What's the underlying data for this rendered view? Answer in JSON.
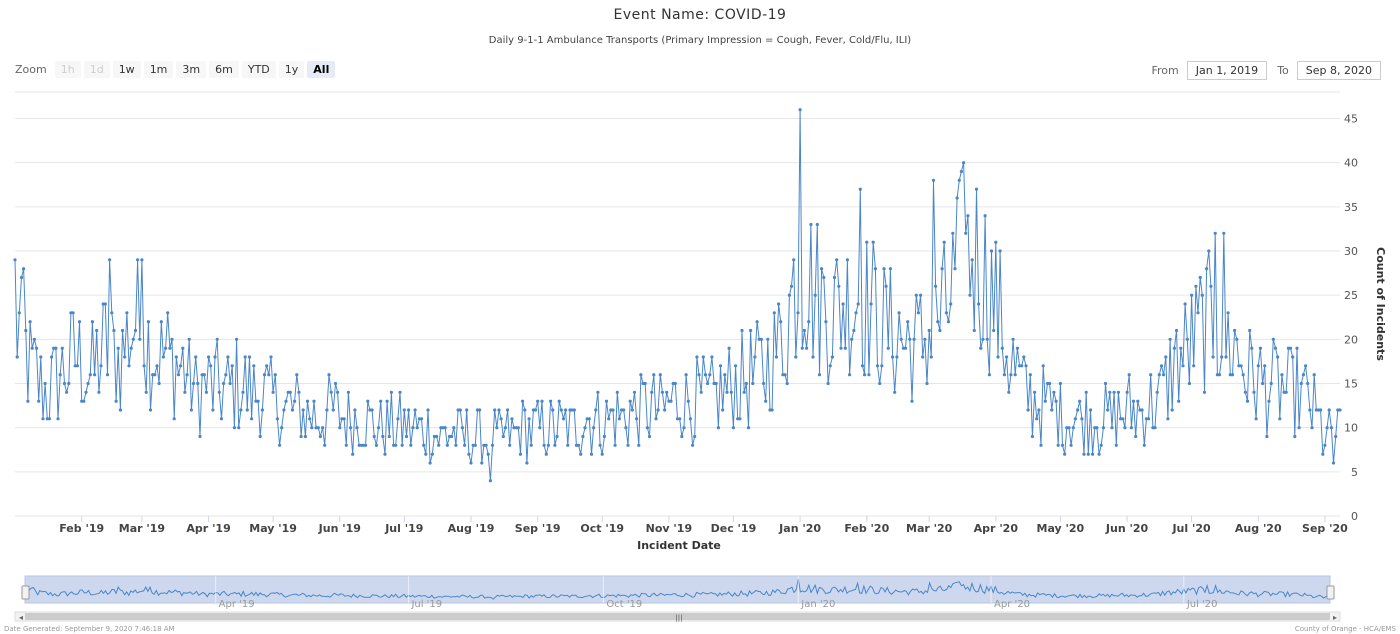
{
  "header": {
    "title": "Event Name: COVID-19",
    "subtitle": "Daily 9-1-1 Ambulance Transports (Primary Impression = Cough, Fever, Cold/Flu, ILI)"
  },
  "zoom": {
    "label": "Zoom",
    "buttons": [
      {
        "label": "1h",
        "state": "disabled"
      },
      {
        "label": "1d",
        "state": "disabled"
      },
      {
        "label": "1w",
        "state": "normal"
      },
      {
        "label": "1m",
        "state": "normal"
      },
      {
        "label": "3m",
        "state": "normal"
      },
      {
        "label": "6m",
        "state": "normal"
      },
      {
        "label": "YTD",
        "state": "normal"
      },
      {
        "label": "1y",
        "state": "normal"
      },
      {
        "label": "All",
        "state": "active"
      }
    ]
  },
  "range": {
    "from_label": "From",
    "from_value": "Jan 1, 2019",
    "to_label": "To",
    "to_value": "Sep 8, 2020"
  },
  "footer": {
    "left": "Date Generated: September 9, 2020 7:46:18 AM",
    "right": "County of Orange - HCA/EMS"
  },
  "colors": {
    "series": "#4a86c8",
    "navigator_fill": "#cdd8ee",
    "grid": "#e6e6e6"
  },
  "chart_data": {
    "type": "line",
    "xlabel": "Incident Date",
    "ylabel": "Count of Incidents",
    "ylim": [
      0,
      48
    ],
    "yticks": [
      0,
      5,
      10,
      15,
      20,
      25,
      30,
      35,
      40,
      45
    ],
    "x_start": "2019-01-01",
    "x_end": "2020-09-08",
    "xticks": [
      "Feb '19",
      "Mar '19",
      "Apr '19",
      "May '19",
      "Jun '19",
      "Jul '19",
      "Aug '19",
      "Sep '19",
      "Oct '19",
      "Nov '19",
      "Dec '19",
      "Jan '20",
      "Feb '20",
      "Mar '20",
      "Apr '20",
      "May '20",
      "Jun '20",
      "Jul '20",
      "Aug '20",
      "Sep '20"
    ],
    "navigator_labels": [
      "Apr '19",
      "Jul '19",
      "Oct '19",
      "Jan '20",
      "Apr '20",
      "Jul '20"
    ],
    "grid": true,
    "legend": "none",
    "weekly": [
      {
        "week_of": "2019-01-01",
        "value": 22
      },
      {
        "week_of": "2019-01-08",
        "value": 17
      },
      {
        "week_of": "2019-01-15",
        "value": 14
      },
      {
        "week_of": "2019-01-22",
        "value": 16
      },
      {
        "week_of": "2019-01-29",
        "value": 18
      },
      {
        "week_of": "2019-02-05",
        "value": 16
      },
      {
        "week_of": "2019-02-12",
        "value": 19
      },
      {
        "week_of": "2019-02-19",
        "value": 18
      },
      {
        "week_of": "2019-02-26",
        "value": 22
      },
      {
        "week_of": "2019-03-05",
        "value": 19
      },
      {
        "week_of": "2019-03-12",
        "value": 18
      },
      {
        "week_of": "2019-03-19",
        "value": 17
      },
      {
        "week_of": "2019-03-26",
        "value": 14
      },
      {
        "week_of": "2019-04-02",
        "value": 15
      },
      {
        "week_of": "2019-04-09",
        "value": 14
      },
      {
        "week_of": "2019-04-16",
        "value": 15
      },
      {
        "week_of": "2019-04-23",
        "value": 14
      },
      {
        "week_of": "2019-04-30",
        "value": 13
      },
      {
        "week_of": "2019-05-07",
        "value": 12
      },
      {
        "week_of": "2019-05-14",
        "value": 12
      },
      {
        "week_of": "2019-05-21",
        "value": 11
      },
      {
        "week_of": "2019-05-28",
        "value": 12
      },
      {
        "week_of": "2019-06-04",
        "value": 11
      },
      {
        "week_of": "2019-06-11",
        "value": 11
      },
      {
        "week_of": "2019-06-18",
        "value": 10
      },
      {
        "week_of": "2019-06-25",
        "value": 10
      },
      {
        "week_of": "2019-07-02",
        "value": 10
      },
      {
        "week_of": "2019-07-09",
        "value": 10
      },
      {
        "week_of": "2019-07-16",
        "value": 9
      },
      {
        "week_of": "2019-07-23",
        "value": 9
      },
      {
        "week_of": "2019-07-30",
        "value": 9
      },
      {
        "week_of": "2019-08-06",
        "value": 9
      },
      {
        "week_of": "2019-08-13",
        "value": 9
      },
      {
        "week_of": "2019-08-20",
        "value": 9
      },
      {
        "week_of": "2019-08-27",
        "value": 10
      },
      {
        "week_of": "2019-09-03",
        "value": 10
      },
      {
        "week_of": "2019-09-10",
        "value": 10
      },
      {
        "week_of": "2019-09-17",
        "value": 10
      },
      {
        "week_of": "2019-09-24",
        "value": 11
      },
      {
        "week_of": "2019-10-01",
        "value": 11
      },
      {
        "week_of": "2019-10-08",
        "value": 11
      },
      {
        "week_of": "2019-10-15",
        "value": 12
      },
      {
        "week_of": "2019-10-22",
        "value": 12
      },
      {
        "week_of": "2019-10-29",
        "value": 12
      },
      {
        "week_of": "2019-11-05",
        "value": 13
      },
      {
        "week_of": "2019-11-12",
        "value": 13
      },
      {
        "week_of": "2019-11-19",
        "value": 13
      },
      {
        "week_of": "2019-11-26",
        "value": 14
      },
      {
        "week_of": "2019-12-03",
        "value": 15
      },
      {
        "week_of": "2019-12-10",
        "value": 16
      },
      {
        "week_of": "2019-12-17",
        "value": 17
      },
      {
        "week_of": "2019-12-24",
        "value": 20
      },
      {
        "week_of": "2019-12-31",
        "value": 28
      },
      {
        "week_of": "2020-01-07",
        "value": 26
      },
      {
        "week_of": "2020-01-14",
        "value": 23
      },
      {
        "week_of": "2020-01-21",
        "value": 24
      },
      {
        "week_of": "2020-01-28",
        "value": 25
      },
      {
        "week_of": "2020-02-04",
        "value": 23
      },
      {
        "week_of": "2020-02-11",
        "value": 21
      },
      {
        "week_of": "2020-02-18",
        "value": 20
      },
      {
        "week_of": "2020-02-25",
        "value": 19
      },
      {
        "week_of": "2020-03-03",
        "value": 21
      },
      {
        "week_of": "2020-03-10",
        "value": 24
      },
      {
        "week_of": "2020-03-17",
        "value": 30
      },
      {
        "week_of": "2020-03-24",
        "value": 29
      },
      {
        "week_of": "2020-03-31",
        "value": 25
      },
      {
        "week_of": "2020-04-07",
        "value": 18
      },
      {
        "week_of": "2020-04-14",
        "value": 14
      },
      {
        "week_of": "2020-04-21",
        "value": 13
      },
      {
        "week_of": "2020-04-28",
        "value": 12
      },
      {
        "week_of": "2020-05-05",
        "value": 11
      },
      {
        "week_of": "2020-05-12",
        "value": 11
      },
      {
        "week_of": "2020-05-19",
        "value": 11
      },
      {
        "week_of": "2020-05-26",
        "value": 11
      },
      {
        "week_of": "2020-06-02",
        "value": 12
      },
      {
        "week_of": "2020-06-09",
        "value": 12
      },
      {
        "week_of": "2020-06-16",
        "value": 13
      },
      {
        "week_of": "2020-06-23",
        "value": 17
      },
      {
        "week_of": "2020-06-30",
        "value": 19
      },
      {
        "week_of": "2020-07-07",
        "value": 22
      },
      {
        "week_of": "2020-07-14",
        "value": 21
      },
      {
        "week_of": "2020-07-21",
        "value": 19
      },
      {
        "week_of": "2020-07-28",
        "value": 16
      },
      {
        "week_of": "2020-08-04",
        "value": 15
      },
      {
        "week_of": "2020-08-11",
        "value": 14
      },
      {
        "week_of": "2020-08-18",
        "value": 14
      },
      {
        "week_of": "2020-08-25",
        "value": 13
      },
      {
        "week_of": "2020-09-01",
        "value": 9
      }
    ],
    "peaks": [
      {
        "date": "2019-01-01",
        "value": 29
      },
      {
        "date": "2019-01-05",
        "value": 28
      },
      {
        "date": "2019-02-14",
        "value": 29
      },
      {
        "date": "2019-03-01",
        "value": 29
      },
      {
        "date": "2019-08-10",
        "value": 4
      },
      {
        "date": "2020-01-01",
        "value": 46
      },
      {
        "date": "2020-01-29",
        "value": 37
      },
      {
        "date": "2020-03-03",
        "value": 38
      },
      {
        "date": "2020-03-17",
        "value": 40
      },
      {
        "date": "2020-07-12",
        "value": 32
      },
      {
        "date": "2020-07-16",
        "value": 32
      },
      {
        "date": "2020-09-05",
        "value": 6
      }
    ]
  }
}
